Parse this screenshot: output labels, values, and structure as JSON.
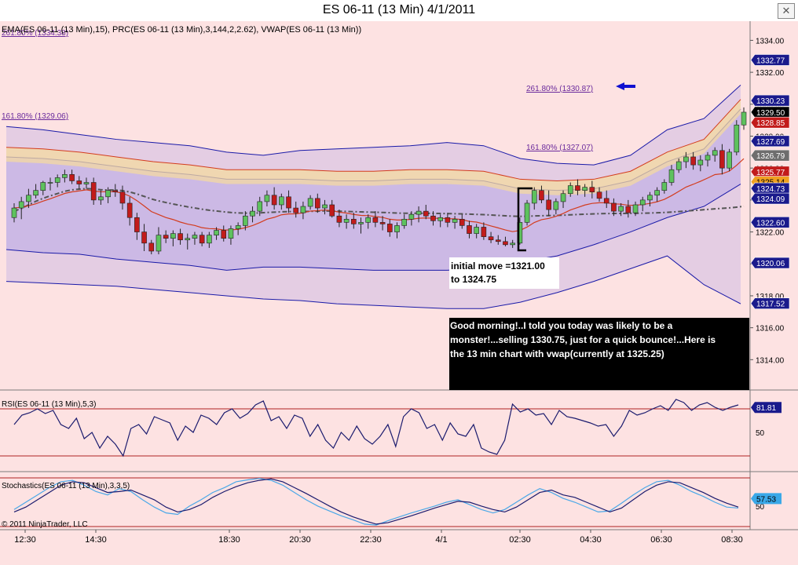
{
  "window": {
    "title": "ES 06-11 (13 Min)  4/1/2011",
    "close_glyph": "✕"
  },
  "colors": {
    "background": "#fde2e2",
    "up_candle": "#5ec25e",
    "down_candle": "#c21b1b",
    "band_fill": "#8e86e8",
    "band_line": "#1a1aa8",
    "vwap": "#555555",
    "ema_band": "#f4d9a0",
    "ema_line": "#d33c1e",
    "rsi_line": "#1b1b6e",
    "stoch_k": "#4aa8e8",
    "stoch_d": "#1b1b6e",
    "arrow": "#1010d0"
  },
  "indicator_label": "EMA(ES 06-11 (13 Min),15), PRC(ES 06-11 (13 Min),3,144,2,2.62), VWAP(ES 06-11 (13 Min))",
  "overlap_label": "261.80% (1334.38)",
  "fib_levels": [
    {
      "label": "261.80% (1330.87)",
      "price": 1330.87,
      "arrow_icon": "left-arrow-icon"
    },
    {
      "label": "161.80% (1329.06)",
      "price": 1329.06
    },
    {
      "label": "161.80% (1327.07)",
      "price": 1327.07
    }
  ],
  "annotations": {
    "initial_move": [
      "initial move =1321.00",
      "to 1324.75"
    ],
    "comment": [
      " Good morning!..I told you today was likely to be a",
      "monster!...selling 1330.75, just for a quick bounce!...Here is",
      "the 13 min chart with vwap(currently at 1325.25)"
    ]
  },
  "price_flags": [
    {
      "label": "1332.77",
      "value": 1332.77,
      "bg": "#1a1a8c",
      "fg": "#ffffff"
    },
    {
      "label": "1330.23",
      "value": 1330.23,
      "bg": "#1a1a8c",
      "fg": "#ffffff"
    },
    {
      "label": "1329.50",
      "value": 1329.5,
      "bg": "#000000",
      "fg": "#ffffff"
    },
    {
      "label": "1328.85",
      "value": 1328.85,
      "bg": "#c21b1b",
      "fg": "#ffffff"
    },
    {
      "label": "1327.69",
      "value": 1327.69,
      "bg": "#1a1a8c",
      "fg": "#ffffff"
    },
    {
      "label": "1326.79",
      "value": 1326.79,
      "bg": "#6e6e6e",
      "fg": "#ffffff"
    },
    {
      "label": "1325.77",
      "value": 1325.77,
      "bg": "#c21b1b",
      "fg": "#ffffff"
    },
    {
      "label": "1325.14",
      "value": 1325.14,
      "bg": "#f0a020",
      "fg": "#000000"
    },
    {
      "label": "1324.73",
      "value": 1324.73,
      "bg": "#1a1a8c",
      "fg": "#ffffff"
    },
    {
      "label": "1324.09",
      "value": 1324.09,
      "bg": "#1a1a8c",
      "fg": "#ffffff"
    },
    {
      "label": "1322.60",
      "value": 1322.6,
      "bg": "#1a1a8c",
      "fg": "#ffffff"
    },
    {
      "label": "1320.06",
      "value": 1320.06,
      "bg": "#1a1a8c",
      "fg": "#ffffff"
    },
    {
      "label": "1317.52",
      "value": 1317.52,
      "bg": "#1a1a8c",
      "fg": "#ffffff"
    }
  ],
  "rsi": {
    "label": "RSI(ES 06-11 (13 Min),5,3)",
    "flag": "81.81",
    "flag_value": 81.81,
    "tick": "50"
  },
  "stochastics": {
    "label": "Stochastics(ES 06-11 (13 Min),3,3,5)",
    "flag": "57.53",
    "flag_value": 57.53,
    "tick": "50"
  },
  "copyright": "© 2011 NinjaTrader, LLC",
  "chart_data": {
    "type": "candlestick",
    "price_axis": {
      "ticks": [
        "1334.00",
        "1332.00",
        "1330.00",
        "1328.00",
        "1326.00",
        "1324.00",
        "1322.00",
        "1320.00",
        "1318.00",
        "1316.00",
        "1314.00"
      ],
      "range": [
        1312.1,
        1335.2
      ]
    },
    "time_axis": {
      "ticks": [
        "12:30",
        "14:30",
        "18:30",
        "20:30",
        "22:30",
        "4/1",
        "02:30",
        "04:30",
        "06:30",
        "08:30"
      ]
    },
    "candles": [
      [
        1322.9,
        1323.8,
        1322.6,
        1323.5
      ],
      [
        1323.5,
        1324.2,
        1322.8,
        1323.9
      ],
      [
        1323.9,
        1324.7,
        1323.5,
        1324.3
      ],
      [
        1324.3,
        1325.0,
        1324.1,
        1324.6
      ],
      [
        1324.6,
        1325.2,
        1324.3,
        1325.1
      ],
      [
        1325.1,
        1325.4,
        1324.6,
        1325.1
      ],
      [
        1325.1,
        1325.6,
        1324.8,
        1325.4
      ],
      [
        1325.4,
        1325.9,
        1325.1,
        1325.6
      ],
      [
        1325.6,
        1325.9,
        1325.0,
        1325.2
      ],
      [
        1325.2,
        1325.5,
        1324.7,
        1325.0
      ],
      [
        1325.0,
        1325.4,
        1324.7,
        1325.1
      ],
      [
        1325.1,
        1325.4,
        1323.7,
        1324.0
      ],
      [
        1324.0,
        1324.6,
        1323.7,
        1324.2
      ],
      [
        1324.2,
        1324.8,
        1323.8,
        1324.6
      ],
      [
        1324.6,
        1325.0,
        1324.2,
        1324.5
      ],
      [
        1324.5,
        1324.9,
        1323.4,
        1323.8
      ],
      [
        1323.8,
        1324.2,
        1322.4,
        1322.9
      ],
      [
        1322.9,
        1323.2,
        1321.5,
        1322.0
      ],
      [
        1322.0,
        1322.5,
        1320.8,
        1321.3
      ],
      [
        1321.3,
        1321.5,
        1320.6,
        1320.8
      ],
      [
        1320.8,
        1322.3,
        1320.6,
        1321.8
      ],
      [
        1321.8,
        1322.1,
        1321.3,
        1321.6
      ],
      [
        1321.6,
        1322.1,
        1321.1,
        1321.9
      ],
      [
        1321.9,
        1322.2,
        1321.2,
        1321.5
      ],
      [
        1321.5,
        1321.9,
        1320.9,
        1321.6
      ],
      [
        1321.6,
        1322.0,
        1321.2,
        1321.8
      ],
      [
        1321.8,
        1322.0,
        1321.1,
        1321.3
      ],
      [
        1321.3,
        1322.0,
        1321.0,
        1321.8
      ],
      [
        1321.8,
        1322.3,
        1321.5,
        1322.1
      ],
      [
        1322.1,
        1322.4,
        1321.4,
        1321.6
      ],
      [
        1321.6,
        1322.4,
        1321.2,
        1322.2
      ],
      [
        1322.2,
        1322.6,
        1321.8,
        1322.4
      ],
      [
        1322.4,
        1323.3,
        1322.1,
        1323.0
      ],
      [
        1323.0,
        1323.6,
        1322.6,
        1323.3
      ],
      [
        1323.3,
        1324.2,
        1323.0,
        1323.9
      ],
      [
        1323.9,
        1324.6,
        1323.6,
        1324.3
      ],
      [
        1324.3,
        1324.8,
        1323.4,
        1323.7
      ],
      [
        1323.7,
        1324.4,
        1323.4,
        1324.2
      ],
      [
        1324.2,
        1324.6,
        1323.2,
        1323.5
      ],
      [
        1323.5,
        1323.9,
        1322.9,
        1323.2
      ],
      [
        1323.2,
        1323.9,
        1322.8,
        1323.6
      ],
      [
        1323.6,
        1324.3,
        1323.4,
        1324.1
      ],
      [
        1324.1,
        1324.4,
        1323.2,
        1323.5
      ],
      [
        1323.5,
        1324.0,
        1323.1,
        1323.7
      ],
      [
        1323.7,
        1324.0,
        1322.9,
        1323.0
      ],
      [
        1323.0,
        1323.4,
        1322.3,
        1322.6
      ],
      [
        1322.6,
        1323.1,
        1322.2,
        1322.8
      ],
      [
        1322.8,
        1323.2,
        1322.2,
        1322.5
      ],
      [
        1322.5,
        1322.9,
        1321.9,
        1322.6
      ],
      [
        1322.6,
        1323.1,
        1322.2,
        1322.9
      ],
      [
        1322.9,
        1323.3,
        1322.3,
        1322.6
      ],
      [
        1322.6,
        1323.0,
        1322.1,
        1322.5
      ],
      [
        1322.5,
        1322.8,
        1321.7,
        1322.0
      ],
      [
        1322.0,
        1322.6,
        1321.6,
        1322.4
      ],
      [
        1322.4,
        1323.1,
        1322.2,
        1322.8
      ],
      [
        1322.8,
        1323.3,
        1322.4,
        1323.1
      ],
      [
        1323.1,
        1323.6,
        1322.6,
        1323.3
      ],
      [
        1323.3,
        1323.7,
        1322.8,
        1323.0
      ],
      [
        1323.0,
        1323.3,
        1322.4,
        1322.7
      ],
      [
        1322.7,
        1323.1,
        1322.3,
        1322.9
      ],
      [
        1322.9,
        1323.2,
        1322.3,
        1322.6
      ],
      [
        1322.6,
        1323.0,
        1322.2,
        1322.8
      ],
      [
        1322.8,
        1323.1,
        1322.2,
        1322.4
      ],
      [
        1322.4,
        1322.7,
        1321.6,
        1321.9
      ],
      [
        1321.9,
        1322.5,
        1321.6,
        1322.3
      ],
      [
        1322.3,
        1322.6,
        1321.5,
        1321.7
      ],
      [
        1321.7,
        1322.0,
        1321.3,
        1321.5
      ],
      [
        1321.5,
        1321.8,
        1321.2,
        1321.4
      ],
      [
        1321.4,
        1321.7,
        1321.1,
        1321.2
      ],
      [
        1321.2,
        1321.5,
        1321.0,
        1321.3
      ],
      [
        1321.3,
        1322.9,
        1321.2,
        1322.6
      ],
      [
        1322.6,
        1324.0,
        1322.4,
        1323.8
      ],
      [
        1323.8,
        1324.8,
        1323.4,
        1324.6
      ],
      [
        1324.6,
        1324.9,
        1323.8,
        1324.0
      ],
      [
        1324.0,
        1324.6,
        1323.0,
        1323.4
      ],
      [
        1323.4,
        1324.1,
        1323.1,
        1323.9
      ],
      [
        1323.9,
        1324.6,
        1323.5,
        1324.4
      ],
      [
        1324.4,
        1325.1,
        1324.2,
        1324.9
      ],
      [
        1324.9,
        1325.3,
        1324.3,
        1324.6
      ],
      [
        1324.6,
        1325.0,
        1324.2,
        1324.8
      ],
      [
        1324.8,
        1325.2,
        1324.1,
        1324.5
      ],
      [
        1324.5,
        1324.8,
        1323.9,
        1324.1
      ],
      [
        1324.1,
        1324.6,
        1323.5,
        1323.8
      ],
      [
        1323.8,
        1324.1,
        1323.0,
        1323.3
      ],
      [
        1323.3,
        1323.8,
        1323.0,
        1323.6
      ],
      [
        1323.6,
        1324.0,
        1322.9,
        1323.2
      ],
      [
        1323.2,
        1323.9,
        1323.0,
        1323.7
      ],
      [
        1323.7,
        1324.2,
        1323.3,
        1324.0
      ],
      [
        1324.0,
        1324.5,
        1323.6,
        1324.3
      ],
      [
        1324.3,
        1324.8,
        1323.9,
        1324.6
      ],
      [
        1324.6,
        1325.3,
        1324.4,
        1325.1
      ],
      [
        1325.1,
        1326.2,
        1324.9,
        1325.9
      ],
      [
        1325.9,
        1326.6,
        1325.7,
        1326.4
      ],
      [
        1326.4,
        1327.0,
        1326.0,
        1326.7
      ],
      [
        1326.7,
        1327.0,
        1325.9,
        1326.2
      ],
      [
        1326.2,
        1326.8,
        1325.8,
        1326.5
      ],
      [
        1326.5,
        1327.0,
        1326.1,
        1326.8
      ],
      [
        1326.8,
        1327.3,
        1326.4,
        1327.1
      ],
      [
        1327.1,
        1327.5,
        1325.6,
        1326.0
      ],
      [
        1326.0,
        1327.2,
        1325.8,
        1327.0
      ],
      [
        1327.0,
        1329.0,
        1326.8,
        1328.7
      ],
      [
        1328.7,
        1329.8,
        1328.4,
        1329.5
      ]
    ],
    "prc_bands": {
      "upper2": [
        1328.6,
        1328.4,
        1328.1,
        1327.8,
        1327.6,
        1327.4,
        1327.0,
        1326.8,
        1327.1,
        1327.2,
        1327.3,
        1327.4,
        1327.6,
        1327.4,
        1326.6,
        1326.3,
        1326.2,
        1326.8,
        1328.4,
        1329.1,
        1331.2
      ],
      "upper1": [
        1326.7,
        1326.6,
        1326.4,
        1326.1,
        1325.8,
        1325.6,
        1325.3,
        1325.3,
        1325.3,
        1325.2,
        1325.2,
        1325.3,
        1325.3,
        1325.2,
        1324.7,
        1324.6,
        1324.7,
        1325.2,
        1326.4,
        1327.2,
        1329.7
      ],
      "mid": [
        1323.8,
        1323.6,
        1323.4,
        1323.1,
        1322.9,
        1322.6,
        1322.4,
        1322.5,
        1322.3,
        1322.2,
        1322.3,
        1322.3,
        1322.4,
        1322.2,
        1322.2,
        1322.5,
        1322.9,
        1323.8,
        1324.7,
        1325.4,
        1327.4
      ],
      "lower1": [
        1320.9,
        1320.7,
        1320.6,
        1320.3,
        1320.1,
        1319.9,
        1319.6,
        1319.8,
        1319.8,
        1319.7,
        1319.6,
        1319.6,
        1319.6,
        1319.7,
        1320.1,
        1320.5,
        1321.2,
        1322.0,
        1322.9,
        1323.6,
        1325.0
      ],
      "lower2": [
        1318.9,
        1318.8,
        1318.7,
        1318.6,
        1318.4,
        1318.2,
        1318.0,
        1317.8,
        1317.7,
        1317.5,
        1317.4,
        1317.3,
        1317.2,
        1317.2,
        1317.6,
        1318.2,
        1318.9,
        1319.7,
        1320.5,
        1318.7,
        1317.5
      ]
    },
    "rsi": {
      "values": [
        60,
        72,
        75,
        80,
        74,
        78,
        60,
        55,
        68,
        42,
        50,
        30,
        45,
        35,
        20,
        55,
        60,
        48,
        70,
        66,
        62,
        40,
        58,
        50,
        72,
        68,
        60,
        75,
        80,
        68,
        74,
        85,
        90,
        65,
        70,
        55,
        72,
        68,
        45,
        60,
        40,
        30,
        50,
        40,
        58,
        42,
        35,
        45,
        60,
        32,
        70,
        80,
        75,
        55,
        60,
        40,
        62,
        48,
        45,
        60,
        30,
        25,
        22,
        40,
        86,
        76,
        80,
        72,
        74,
        60,
        78,
        70,
        68,
        65,
        62,
        58,
        60,
        45,
        58,
        78,
        72,
        75,
        80,
        84,
        78,
        92,
        88,
        78,
        85,
        88,
        82,
        78,
        82,
        85
      ],
      "ylim": [
        0,
        100
      ],
      "overbought": 80,
      "oversold": 20
    },
    "stochastics": {
      "d": [
        30,
        40,
        55,
        70,
        85,
        92,
        90,
        80,
        70,
        72,
        75,
        65,
        55,
        40,
        30,
        35,
        45,
        60,
        72,
        82,
        90,
        95,
        98,
        92,
        80,
        68,
        55,
        42,
        30,
        20,
        12,
        5,
        8,
        15,
        22,
        30,
        38,
        45,
        52,
        50,
        42,
        35,
        30,
        40,
        55,
        70,
        75,
        65,
        60,
        50,
        40,
        30,
        38,
        55,
        72,
        85,
        92,
        90,
        80,
        70,
        58,
        48,
        40
      ],
      "k": [
        35,
        50,
        65,
        80,
        92,
        95,
        85,
        72,
        65,
        78,
        72,
        55,
        40,
        28,
        25,
        42,
        55,
        70,
        80,
        92,
        96,
        99,
        95,
        85,
        70,
        55,
        42,
        32,
        22,
        14,
        5,
        3,
        12,
        20,
        28,
        35,
        42,
        50,
        55,
        45,
        35,
        28,
        35,
        50,
        65,
        78,
        70,
        58,
        50,
        40,
        30,
        32,
        48,
        65,
        80,
        92,
        95,
        85,
        72,
        62,
        50,
        40,
        38
      ],
      "ylim": [
        0,
        100
      ]
    }
  }
}
